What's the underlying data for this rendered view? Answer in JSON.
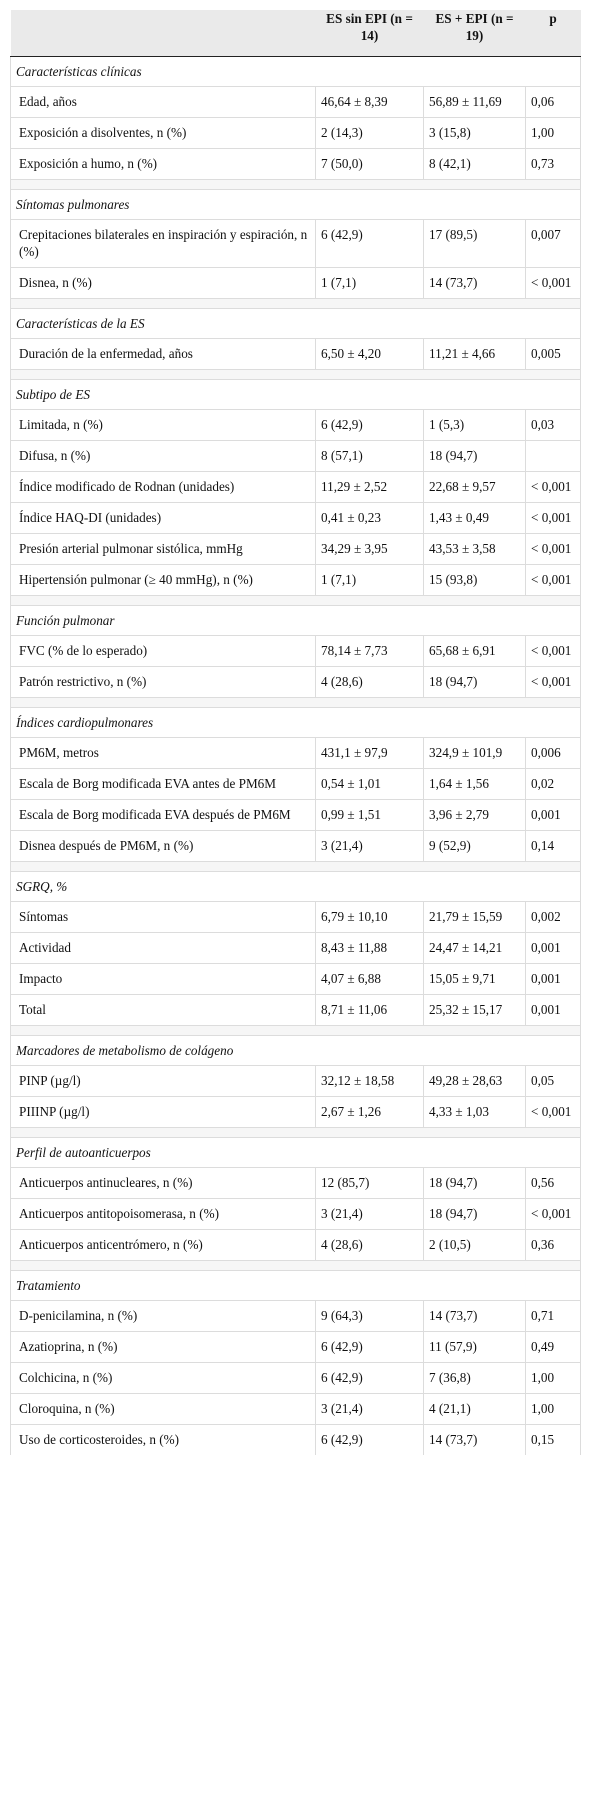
{
  "header": {
    "col1": "",
    "col2": "ES sin EPI (n = 14)",
    "col3": "ES + EPI (n = 19)",
    "col4": "p"
  },
  "sections": [
    {
      "title": "Características clínicas",
      "rows": [
        {
          "label": "Edad, años",
          "a": "46,64 ± 8,39",
          "b": "56,89 ± 11,69",
          "p": "0,06"
        },
        {
          "label": "Exposición a disolventes, n (%)",
          "a": "2 (14,3)",
          "b": "3 (15,8)",
          "p": "1,00"
        },
        {
          "label": "Exposición a humo, n (%)",
          "a": "7 (50,0)",
          "b": "8 (42,1)",
          "p": "0,73"
        }
      ]
    },
    {
      "title": "Síntomas pulmonares",
      "rows": [
        {
          "label": "Crepitaciones bilaterales en inspiración y espiración, n (%)",
          "a": "6 (42,9)",
          "b": "17 (89,5)",
          "p": "0,007"
        },
        {
          "label": "Disnea, n (%)",
          "a": "1 (7,1)",
          "b": "14 (73,7)",
          "p": "< 0,001"
        }
      ]
    },
    {
      "title": "Características de la ES",
      "rows": [
        {
          "label": "Duración de la enfermedad, años",
          "a": "6,50 ± 4,20",
          "b": "11,21 ± 4,66",
          "p": "0,005"
        }
      ]
    },
    {
      "title": "Subtipo de ES",
      "rows": [
        {
          "label": "Limitada, n (%)",
          "a": "6 (42,9)",
          "b": "1 (5,3)",
          "p": "0,03"
        },
        {
          "label": "Difusa, n (%)",
          "a": "8 (57,1)",
          "b": "18 (94,7)",
          "p": ""
        },
        {
          "label": "Índice modificado de Rodnan (unidades)",
          "a": "11,29 ± 2,52",
          "b": "22,68 ± 9,57",
          "p": "< 0,001"
        },
        {
          "label": "Índice HAQ-DI (unidades)",
          "a": "0,41 ± 0,23",
          "b": "1,43 ± 0,49",
          "p": "< 0,001"
        },
        {
          "label": "Presión arterial pulmonar sistólica, mmHg",
          "a": "34,29 ± 3,95",
          "b": "43,53 ± 3,58",
          "p": "< 0,001"
        },
        {
          "label": "Hipertensión pulmonar (≥ 40 mmHg), n (%)",
          "a": "1 (7,1)",
          "b": "15 (93,8)",
          "p": "< 0,001"
        }
      ]
    },
    {
      "title": "Función pulmonar",
      "rows": [
        {
          "label": "FVC (% de lo esperado)",
          "a": "78,14 ± 7,73",
          "b": "65,68 ± 6,91",
          "p": "< 0,001"
        },
        {
          "label": "Patrón restrictivo, n (%)",
          "a": "4 (28,6)",
          "b": "18 (94,7)",
          "p": "< 0,001"
        }
      ]
    },
    {
      "title": "Índices cardiopulmonares",
      "rows": [
        {
          "label": "PM6M, metros",
          "a": "431,1 ± 97,9",
          "b": "324,9 ± 101,9",
          "p": "0,006"
        },
        {
          "label": "Escala de Borg modificada EVA antes de PM6M",
          "a": "0,54 ± 1,01",
          "b": "1,64 ± 1,56",
          "p": "0,02"
        },
        {
          "label": "Escala de Borg modificada EVA después de PM6M",
          "a": "0,99 ± 1,51",
          "b": "3,96 ± 2,79",
          "p": "0,001"
        },
        {
          "label": "Disnea después de PM6M, n (%)",
          "a": "3 (21,4)",
          "b": "9 (52,9)",
          "p": "0,14"
        }
      ]
    },
    {
      "title": "SGRQ, %",
      "rows": [
        {
          "label": "Síntomas",
          "a": "6,79 ± 10,10",
          "b": "21,79 ± 15,59",
          "p": "0,002"
        },
        {
          "label": "Actividad",
          "a": "8,43 ± 11,88",
          "b": "24,47 ± 14,21",
          "p": "0,001"
        },
        {
          "label": "Impacto",
          "a": "4,07 ± 6,88",
          "b": "15,05 ± 9,71",
          "p": "0,001"
        },
        {
          "label": "Total",
          "a": "8,71 ± 11,06",
          "b": "25,32 ± 15,17",
          "p": "0,001"
        }
      ]
    },
    {
      "title": "Marcadores de metabolismo de colágeno",
      "rows": [
        {
          "label": "PINP (µg/l)",
          "a": "32,12 ± 18,58",
          "b": "49,28 ± 28,63",
          "p": "0,05"
        },
        {
          "label": "PIIINP (µg/l)",
          "a": "2,67 ± 1,26",
          "b": "4,33 ± 1,03",
          "p": "< 0,001"
        }
      ]
    },
    {
      "title": "Perfil de autoanticuerpos",
      "rows": [
        {
          "label": "Anticuerpos antinucleares, n (%)",
          "a": "12 (85,7)",
          "b": "18 (94,7)",
          "p": "0,56"
        },
        {
          "label": "Anticuerpos antitopoisomerasa, n (%)",
          "a": "3 (21,4)",
          "b": "18 (94,7)",
          "p": "< 0,001"
        },
        {
          "label": "Anticuerpos anticentrómero, n (%)",
          "a": "4 (28,6)",
          "b": "2 (10,5)",
          "p": "0,36"
        }
      ]
    },
    {
      "title": "Tratamiento",
      "rows": [
        {
          "label": "D-penicilamina, n (%)",
          "a": "9 (64,3)",
          "b": "14 (73,7)",
          "p": "0,71"
        },
        {
          "label": "Azatioprina, n (%)",
          "a": "6 (42,9)",
          "b": "11 (57,9)",
          "p": "0,49"
        },
        {
          "label": "Colchicina, n (%)",
          "a": "6 (42,9)",
          "b": "7 (36,8)",
          "p": "1,00"
        },
        {
          "label": "Cloroquina, n (%)",
          "a": "3 (21,4)",
          "b": "4 (21,1)",
          "p": "1,00"
        },
        {
          "label": "Uso de corticosteroides, n (%)",
          "a": "6 (42,9)",
          "b": "14 (73,7)",
          "p": "0,15"
        }
      ]
    }
  ]
}
